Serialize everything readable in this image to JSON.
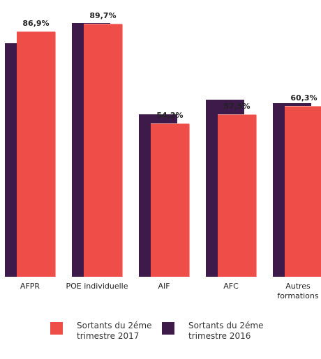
{
  "chart_data": {
    "type": "bar",
    "categories": [
      "AFPR",
      "POE individuelle",
      "AIF",
      "AFC",
      "Autres formations"
    ],
    "series": [
      {
        "name": "Sortants du 2éme trimestre 2016",
        "color": "#3d1a4a",
        "values": [
          82.9,
          90.0,
          57.7,
          62.9,
          61.6
        ]
      },
      {
        "name": "Sortants du 2éme trimestre 2017",
        "color": "#ef4d47",
        "values": [
          86.9,
          89.7,
          54.2,
          57.5,
          60.3
        ],
        "value_labels": [
          "86,9%",
          "89,7%",
          "54,2%",
          "57,5%",
          "60,3%"
        ]
      }
    ],
    "ylim": [
      0,
      100
    ]
  }
}
